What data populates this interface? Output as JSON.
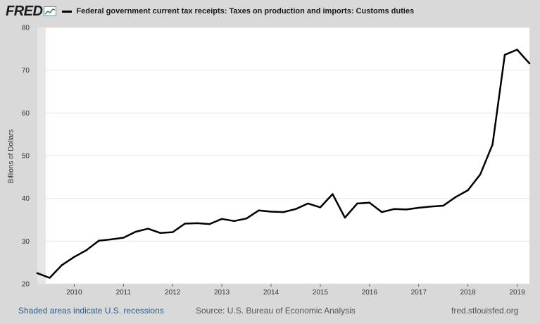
{
  "header": {
    "logo": "FRED",
    "series_label": "Federal government current tax receipts: Taxes on production and imports: Customs duties"
  },
  "footer": {
    "recession_note": "Shaded areas indicate U.S. recessions",
    "source": "Source: U.S. Bureau of Economic Analysis",
    "site": "fred.stlouisfed.org"
  },
  "colors": {
    "background": "#d9d9d9",
    "plot": "#ffffff",
    "line": "#000000",
    "recession": "#e6e6e6"
  },
  "chart_data": {
    "type": "line",
    "ylabel": "Billions of Dollars",
    "ylim": [
      20,
      80
    ],
    "yticks": [
      20,
      30,
      40,
      50,
      60,
      70,
      80
    ],
    "xlim": [
      2009.25,
      2019.25
    ],
    "xticks": [
      {
        "label": "2010",
        "x": 2010.0
      },
      {
        "label": "2011",
        "x": 2011.0
      },
      {
        "label": "2012",
        "x": 2012.0
      },
      {
        "label": "2013",
        "x": 2013.0
      },
      {
        "label": "2014",
        "x": 2014.0
      },
      {
        "label": "2015",
        "x": 2015.0
      },
      {
        "label": "2016",
        "x": 2016.0
      },
      {
        "label": "2017",
        "x": 2017.0
      },
      {
        "label": "2018",
        "x": 2018.0
      },
      {
        "label": "2019",
        "x": 2019.0
      }
    ],
    "recessions": [
      {
        "start": 2009.25,
        "end": 2009.42
      }
    ],
    "grid": true,
    "series": [
      {
        "points": [
          [
            2009.25,
            22.5
          ],
          [
            2009.5,
            21.4
          ],
          [
            2009.75,
            24.4
          ],
          [
            2010.0,
            26.3
          ],
          [
            2010.25,
            27.9
          ],
          [
            2010.5,
            30.1
          ],
          [
            2010.75,
            30.4
          ],
          [
            2011.0,
            30.8
          ],
          [
            2011.25,
            32.2
          ],
          [
            2011.5,
            32.9
          ],
          [
            2011.75,
            31.9
          ],
          [
            2012.0,
            32.1
          ],
          [
            2012.25,
            34.1
          ],
          [
            2012.5,
            34.2
          ],
          [
            2012.75,
            34.0
          ],
          [
            2013.0,
            35.2
          ],
          [
            2013.25,
            34.7
          ],
          [
            2013.5,
            35.3
          ],
          [
            2013.75,
            37.2
          ],
          [
            2014.0,
            36.9
          ],
          [
            2014.25,
            36.8
          ],
          [
            2014.5,
            37.5
          ],
          [
            2014.75,
            38.8
          ],
          [
            2015.0,
            37.9
          ],
          [
            2015.25,
            41.0
          ],
          [
            2015.5,
            35.5
          ],
          [
            2015.75,
            38.8
          ],
          [
            2016.0,
            39.0
          ],
          [
            2016.25,
            36.8
          ],
          [
            2016.5,
            37.5
          ],
          [
            2016.75,
            37.4
          ],
          [
            2017.0,
            37.8
          ],
          [
            2017.25,
            38.1
          ],
          [
            2017.5,
            38.3
          ],
          [
            2017.75,
            40.3
          ],
          [
            2018.0,
            41.9
          ],
          [
            2018.25,
            45.6
          ],
          [
            2018.5,
            52.6
          ],
          [
            2018.75,
            73.6
          ],
          [
            2019.0,
            74.8
          ],
          [
            2019.25,
            71.6
          ]
        ]
      }
    ]
  }
}
